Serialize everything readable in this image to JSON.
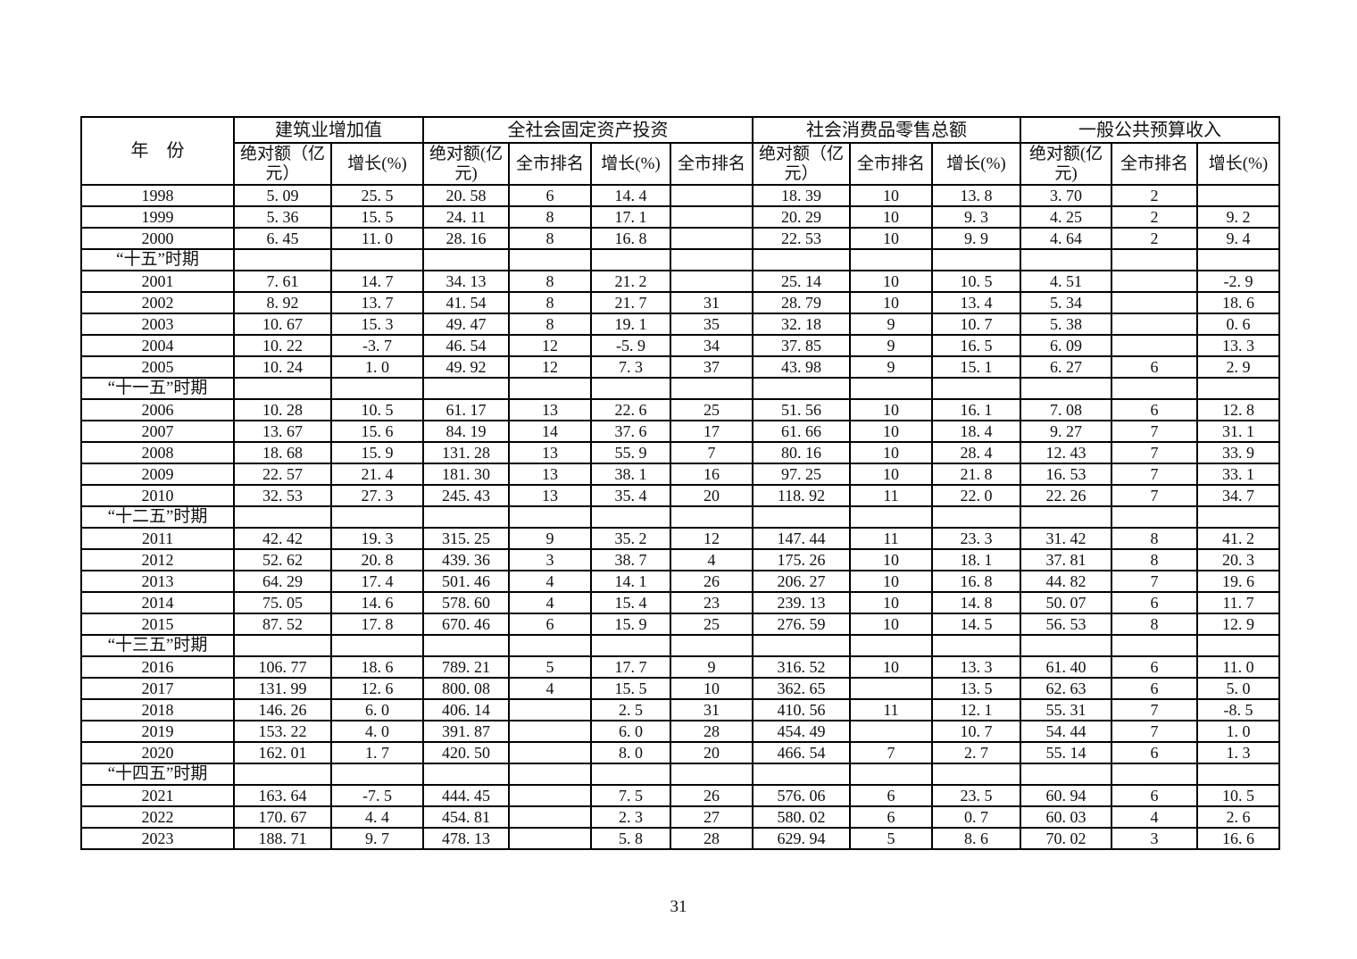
{
  "page": {
    "number": "31"
  },
  "table": {
    "year_header": "年　份",
    "groups": [
      {
        "label": "建筑业增加值",
        "cols": [
          "绝对额（亿元）",
          "增长(%)"
        ]
      },
      {
        "label": "全社会固定资产投资",
        "cols": [
          "绝对额(亿元)",
          "全市排名",
          "增长(%)",
          "全市排名"
        ]
      },
      {
        "label": "社会消费品零售总额",
        "cols": [
          "绝对额（亿元）",
          "全市排名",
          "增长(%)"
        ]
      },
      {
        "label": "一般公共预算收入",
        "cols": [
          "绝对额(亿元)",
          "全市排名",
          "增长(%)"
        ]
      }
    ],
    "rows": [
      {
        "type": "data",
        "year": "1998",
        "values": [
          "5.09",
          "25.5",
          "20.58",
          "6",
          "14.4",
          "",
          "18.39",
          "10",
          "13.8",
          "3.70",
          "2",
          ""
        ]
      },
      {
        "type": "data",
        "year": "1999",
        "values": [
          "5.36",
          "15.5",
          "24.11",
          "8",
          "17.1",
          "",
          "20.29",
          "10",
          "9.3",
          "4.25",
          "2",
          "9.2"
        ]
      },
      {
        "type": "data",
        "year": "2000",
        "values": [
          "6.45",
          "11.0",
          "28.16",
          "8",
          "16.8",
          "",
          "22.53",
          "10",
          "9.9",
          "4.64",
          "2",
          "9.4"
        ]
      },
      {
        "type": "section",
        "label": "“十五”时期"
      },
      {
        "type": "data",
        "year": "2001",
        "values": [
          "7.61",
          "14.7",
          "34.13",
          "8",
          "21.2",
          "",
          "25.14",
          "10",
          "10.5",
          "4.51",
          "",
          "-2.9"
        ]
      },
      {
        "type": "data",
        "year": "2002",
        "values": [
          "8.92",
          "13.7",
          "41.54",
          "8",
          "21.7",
          "31",
          "28.79",
          "10",
          "13.4",
          "5.34",
          "",
          "18.6"
        ]
      },
      {
        "type": "data",
        "year": "2003",
        "values": [
          "10.67",
          "15.3",
          "49.47",
          "8",
          "19.1",
          "35",
          "32.18",
          "9",
          "10.7",
          "5.38",
          "",
          "0.6"
        ]
      },
      {
        "type": "data",
        "year": "2004",
        "values": [
          "10.22",
          "-3.7",
          "46.54",
          "12",
          "-5.9",
          "34",
          "37.85",
          "9",
          "16.5",
          "6.09",
          "",
          "13.3"
        ]
      },
      {
        "type": "data",
        "year": "2005",
        "values": [
          "10.24",
          "1.0",
          "49.92",
          "12",
          "7.3",
          "37",
          "43.98",
          "9",
          "15.1",
          "6.27",
          "6",
          "2.9"
        ]
      },
      {
        "type": "section",
        "label": "“十一五”时期"
      },
      {
        "type": "data",
        "year": "2006",
        "values": [
          "10.28",
          "10.5",
          "61.17",
          "13",
          "22.6",
          "25",
          "51.56",
          "10",
          "16.1",
          "7.08",
          "6",
          "12.8"
        ]
      },
      {
        "type": "data",
        "year": "2007",
        "values": [
          "13.67",
          "15.6",
          "84.19",
          "14",
          "37.6",
          "17",
          "61.66",
          "10",
          "18.4",
          "9.27",
          "7",
          "31.1"
        ]
      },
      {
        "type": "data",
        "year": "2008",
        "values": [
          "18.68",
          "15.9",
          "131.28",
          "13",
          "55.9",
          "7",
          "80.16",
          "10",
          "28.4",
          "12.43",
          "7",
          "33.9"
        ]
      },
      {
        "type": "data",
        "year": "2009",
        "values": [
          "22.57",
          "21.4",
          "181.30",
          "13",
          "38.1",
          "16",
          "97.25",
          "10",
          "21.8",
          "16.53",
          "7",
          "33.1"
        ]
      },
      {
        "type": "data",
        "year": "2010",
        "values": [
          "32.53",
          "27.3",
          "245.43",
          "13",
          "35.4",
          "20",
          "118.92",
          "11",
          "22.0",
          "22.26",
          "7",
          "34.7"
        ]
      },
      {
        "type": "section",
        "label": "“十二五”时期"
      },
      {
        "type": "data",
        "year": "2011",
        "values": [
          "42.42",
          "19.3",
          "315.25",
          "9",
          "35.2",
          "12",
          "147.44",
          "11",
          "23.3",
          "31.42",
          "8",
          "41.2"
        ]
      },
      {
        "type": "data",
        "year": "2012",
        "values": [
          "52.62",
          "20.8",
          "439.36",
          "3",
          "38.7",
          "4",
          "175.26",
          "10",
          "18.1",
          "37.81",
          "8",
          "20.3"
        ]
      },
      {
        "type": "data",
        "year": "2013",
        "values": [
          "64.29",
          "17.4",
          "501.46",
          "4",
          "14.1",
          "26",
          "206.27",
          "10",
          "16.8",
          "44.82",
          "7",
          "19.6"
        ]
      },
      {
        "type": "data",
        "year": "2014",
        "values": [
          "75.05",
          "14.6",
          "578.60",
          "4",
          "15.4",
          "23",
          "239.13",
          "10",
          "14.8",
          "50.07",
          "6",
          "11.7"
        ]
      },
      {
        "type": "data",
        "year": "2015",
        "values": [
          "87.52",
          "17.8",
          "670.46",
          "6",
          "15.9",
          "25",
          "276.59",
          "10",
          "14.5",
          "56.53",
          "8",
          "12.9"
        ]
      },
      {
        "type": "section",
        "label": "“十三五”时期"
      },
      {
        "type": "data",
        "year": "2016",
        "values": [
          "106.77",
          "18.6",
          "789.21",
          "5",
          "17.7",
          "9",
          "316.52",
          "10",
          "13.3",
          "61.40",
          "6",
          "11.0"
        ]
      },
      {
        "type": "data",
        "year": "2017",
        "values": [
          "131.99",
          "12.6",
          "800.08",
          "4",
          "15.5",
          "10",
          "362.65",
          "",
          "13.5",
          "62.63",
          "6",
          "5.0"
        ]
      },
      {
        "type": "data",
        "year": "2018",
        "values": [
          "146.26",
          "6.0",
          "406.14",
          "",
          "2.5",
          "31",
          "410.56",
          "11",
          "12.1",
          "55.31",
          "7",
          "-8.5"
        ]
      },
      {
        "type": "data",
        "year": "2019",
        "values": [
          "153.22",
          "4.0",
          "391.87",
          "",
          "6.0",
          "28",
          "454.49",
          "",
          "10.7",
          "54.44",
          "7",
          "1.0"
        ]
      },
      {
        "type": "data",
        "year": "2020",
        "values": [
          "162.01",
          "1.7",
          "420.50",
          "",
          "8.0",
          "20",
          "466.54",
          "7",
          "2.7",
          "55.14",
          "6",
          "1.3"
        ]
      },
      {
        "type": "section",
        "label": "“十四五”时期"
      },
      {
        "type": "data",
        "year": "2021",
        "values": [
          "163.64",
          "-7.5",
          "444.45",
          "",
          "7.5",
          "26",
          "576.06",
          "6",
          "23.5",
          "60.94",
          "6",
          "10.5"
        ]
      },
      {
        "type": "data",
        "year": "2022",
        "values": [
          "170.67",
          "4.4",
          "454.81",
          "",
          "2.3",
          "27",
          "580.02",
          "6",
          "0.7",
          "60.03",
          "4",
          "2.6"
        ]
      },
      {
        "type": "data",
        "year": "2023",
        "values": [
          "188.71",
          "9.7",
          "478.13",
          "",
          "5.8",
          "28",
          "629.94",
          "5",
          "8.6",
          "70.02",
          "3",
          "16.6"
        ]
      }
    ]
  }
}
